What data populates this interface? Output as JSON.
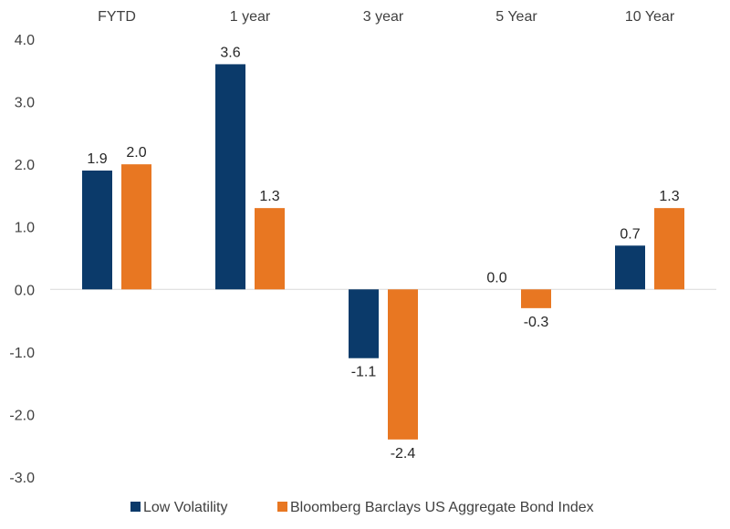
{
  "chart_data": {
    "type": "bar",
    "title": "",
    "xlabel": "",
    "ylabel": "",
    "categories": [
      "FYTD",
      "1 year",
      "3 year",
      "5 Year",
      "10 Year"
    ],
    "category_axis_position": "top",
    "ylim": [
      -3.0,
      4.0
    ],
    "yticks": [
      4.0,
      3.0,
      2.0,
      1.0,
      0.0,
      -1.0,
      -2.0,
      -3.0
    ],
    "ytick_labels": [
      "4.0",
      "3.0",
      "2.0",
      "1.0",
      "0.0",
      "-1.0",
      "-2.0",
      "-3.0"
    ],
    "grid": false,
    "legend_position": "bottom",
    "series": [
      {
        "name": "Low Volatility",
        "color": "#0b3a6a",
        "values": [
          1.9,
          3.6,
          -1.1,
          0.0,
          0.7
        ],
        "labels": [
          "1.9",
          "3.6",
          "-1.1",
          "0.0",
          "0.7"
        ]
      },
      {
        "name": "Bloomberg Barclays US Aggregate Bond Index",
        "color": "#e87722",
        "values": [
          2.0,
          1.3,
          -2.4,
          -0.3,
          1.3
        ],
        "labels": [
          "2.0",
          "1.3",
          "-2.4",
          "-0.3",
          "1.3"
        ]
      }
    ]
  }
}
